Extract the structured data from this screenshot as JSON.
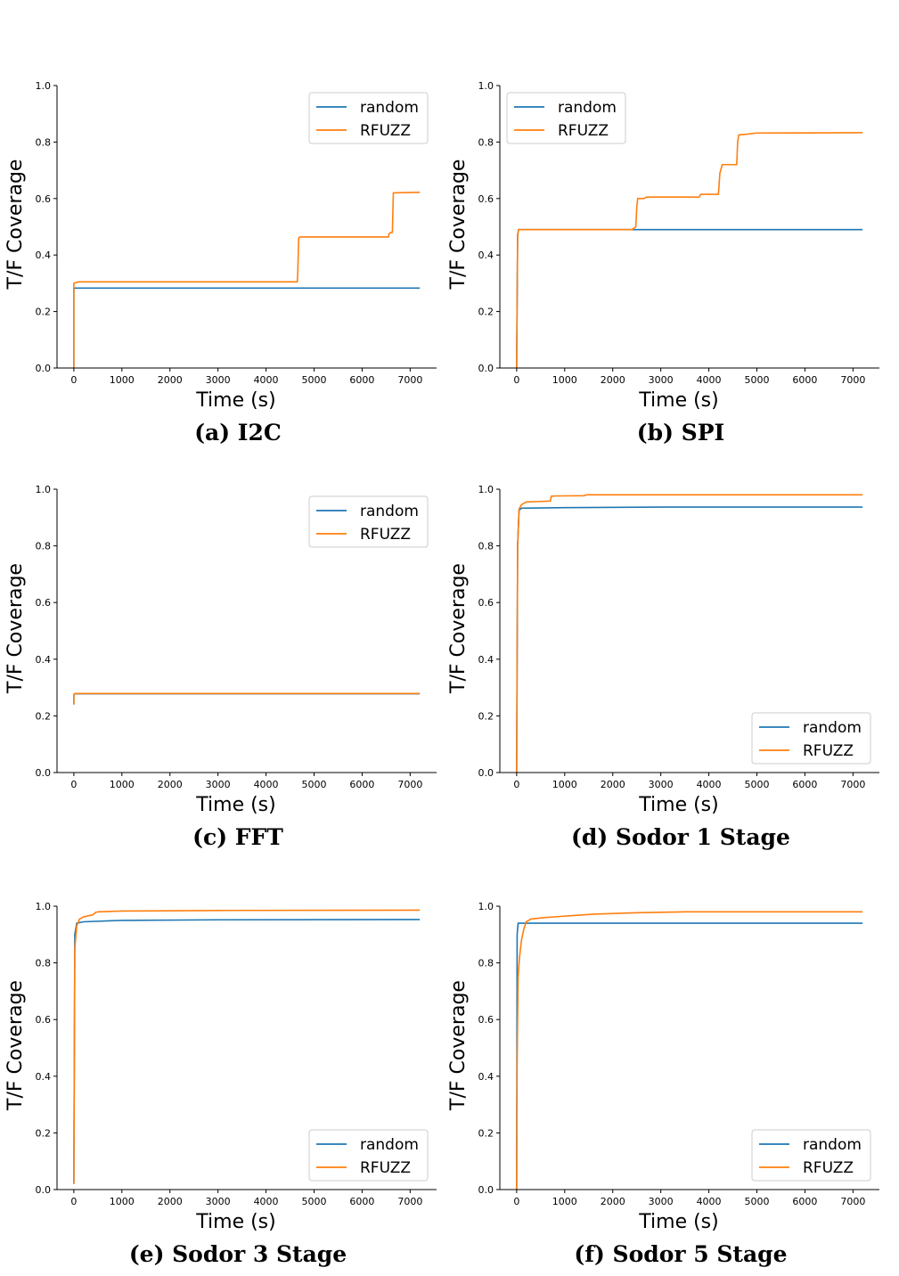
{
  "colors": {
    "random": "#1f77b4",
    "rfuzz": "#ff7f0e",
    "axis": "#000000",
    "legend_border": "#cccccc"
  },
  "chart_data": [
    {
      "type": "line",
      "caption": "(a) I2C",
      "xlabel": "Time (s)",
      "ylabel": "T/F Coverage",
      "xlim": [
        -350,
        7550
      ],
      "ylim": [
        0,
        1.0
      ],
      "xticks": [
        0,
        1000,
        2000,
        3000,
        4000,
        5000,
        6000,
        7000
      ],
      "yticks": [
        "0.0",
        "0.2",
        "0.4",
        "0.6",
        "0.8",
        "1.0"
      ],
      "grid": false,
      "legend_position": "top-right",
      "series": [
        {
          "name": "random",
          "x": [
            0,
            0,
            20,
            7200
          ],
          "y": [
            0.0,
            0.28,
            0.283,
            0.283
          ]
        },
        {
          "name": "RFUZZ",
          "x": [
            0,
            0,
            100,
            4650,
            4660,
            4680,
            4700,
            6550,
            6560,
            6600,
            6630,
            6650,
            7200
          ],
          "y": [
            0.0,
            0.3,
            0.305,
            0.305,
            0.33,
            0.46,
            0.464,
            0.464,
            0.475,
            0.48,
            0.48,
            0.62,
            0.622
          ]
        }
      ]
    },
    {
      "type": "line",
      "caption": "(b) SPI",
      "xlabel": "Time (s)",
      "ylabel": "T/F Coverage",
      "xlim": [
        -350,
        7550
      ],
      "ylim": [
        0,
        1.0
      ],
      "xticks": [
        0,
        1000,
        2000,
        3000,
        4000,
        5000,
        6000,
        7000
      ],
      "yticks": [
        "0.0",
        "0.2",
        "0.4",
        "0.6",
        "0.8",
        "1.0"
      ],
      "grid": false,
      "legend_position": "top-left",
      "series": [
        {
          "name": "random",
          "x": [
            0,
            20,
            40,
            7200
          ],
          "y": [
            0.0,
            0.47,
            0.49,
            0.49
          ]
        },
        {
          "name": "RFUZZ",
          "x": [
            0,
            20,
            40,
            2400,
            2480,
            2500,
            2520,
            2650,
            2700,
            3800,
            3830,
            4200,
            4230,
            4280,
            4580,
            4600,
            4620,
            4650,
            4800,
            5000,
            7200
          ],
          "y": [
            0.0,
            0.47,
            0.49,
            0.49,
            0.5,
            0.57,
            0.6,
            0.6,
            0.605,
            0.605,
            0.615,
            0.615,
            0.69,
            0.72,
            0.72,
            0.8,
            0.825,
            0.826,
            0.828,
            0.832,
            0.833
          ]
        }
      ]
    },
    {
      "type": "line",
      "caption": "(c) FFT",
      "xlabel": "Time (s)",
      "ylabel": "T/F Coverage",
      "xlim": [
        -350,
        7550
      ],
      "ylim": [
        0,
        1.0
      ],
      "xticks": [
        0,
        1000,
        2000,
        3000,
        4000,
        5000,
        6000,
        7000
      ],
      "yticks": [
        "0.0",
        "0.2",
        "0.4",
        "0.6",
        "0.8",
        "1.0"
      ],
      "grid": false,
      "legend_position": "top-right",
      "series": [
        {
          "name": "random",
          "x": [
            0,
            0,
            20,
            7200
          ],
          "y": [
            0.24,
            0.275,
            0.278,
            0.278
          ]
        },
        {
          "name": "RFUZZ",
          "x": [
            0,
            0,
            20,
            7200
          ],
          "y": [
            0.24,
            0.275,
            0.279,
            0.279
          ]
        }
      ]
    },
    {
      "type": "line",
      "caption": "(d) Sodor 1 Stage",
      "xlabel": "Time (s)",
      "ylabel": "T/F Coverage",
      "xlim": [
        -350,
        7550
      ],
      "ylim": [
        0,
        1.0
      ],
      "xticks": [
        0,
        1000,
        2000,
        3000,
        4000,
        5000,
        6000,
        7000
      ],
      "yticks": [
        "0.0",
        "0.2",
        "0.4",
        "0.6",
        "0.8",
        "1.0"
      ],
      "grid": false,
      "legend_position": "bottom-right",
      "series": [
        {
          "name": "random",
          "x": [
            0,
            20,
            50,
            100,
            1000,
            3000,
            7200
          ],
          "y": [
            0.0,
            0.8,
            0.925,
            0.933,
            0.935,
            0.937,
            0.937
          ]
        },
        {
          "name": "RFUZZ",
          "x": [
            0,
            20,
            50,
            100,
            200,
            400,
            700,
            720,
            800,
            1400,
            1450,
            7200
          ],
          "y": [
            0.0,
            0.8,
            0.93,
            0.945,
            0.955,
            0.956,
            0.958,
            0.975,
            0.976,
            0.977,
            0.98,
            0.98
          ]
        }
      ]
    },
    {
      "type": "line",
      "caption": "(e) Sodor 3 Stage",
      "xlabel": "Time (s)",
      "ylabel": "T/F Coverage",
      "xlim": [
        -350,
        7550
      ],
      "ylim": [
        0,
        1.0
      ],
      "xticks": [
        0,
        1000,
        2000,
        3000,
        4000,
        5000,
        6000,
        7000
      ],
      "yticks": [
        "0.0",
        "0.2",
        "0.4",
        "0.6",
        "0.8",
        "1.0"
      ],
      "grid": false,
      "legend_position": "bottom-right",
      "series": [
        {
          "name": "random",
          "x": [
            0,
            20,
            60,
            200,
            1000,
            3000,
            7200
          ],
          "y": [
            0.02,
            0.9,
            0.94,
            0.945,
            0.95,
            0.952,
            0.953
          ]
        },
        {
          "name": "RFUZZ",
          "x": [
            0,
            20,
            60,
            120,
            200,
            400,
            450,
            500,
            1000,
            3000,
            7200
          ],
          "y": [
            0.02,
            0.85,
            0.93,
            0.955,
            0.962,
            0.97,
            0.978,
            0.98,
            0.983,
            0.985,
            0.986
          ]
        }
      ]
    },
    {
      "type": "line",
      "caption": "(f) Sodor 5 Stage",
      "xlabel": "Time (s)",
      "ylabel": "T/F Coverage",
      "xlim": [
        -350,
        7550
      ],
      "ylim": [
        0,
        1.0
      ],
      "xticks": [
        0,
        1000,
        2000,
        3000,
        4000,
        5000,
        6000,
        7000
      ],
      "yticks": [
        "0.0",
        "0.2",
        "0.4",
        "0.6",
        "0.8",
        "1.0"
      ],
      "grid": false,
      "legend_position": "bottom-right",
      "series": [
        {
          "name": "random",
          "x": [
            0,
            10,
            30,
            7200
          ],
          "y": [
            0.0,
            0.9,
            0.94,
            0.94
          ]
        },
        {
          "name": "RFUZZ",
          "x": [
            0,
            10,
            30,
            60,
            100,
            150,
            200,
            300,
            600,
            1000,
            1600,
            2500,
            3500,
            7200
          ],
          "y": [
            0.0,
            0.45,
            0.75,
            0.82,
            0.88,
            0.92,
            0.945,
            0.955,
            0.96,
            0.965,
            0.972,
            0.977,
            0.98,
            0.98
          ]
        }
      ]
    }
  ]
}
